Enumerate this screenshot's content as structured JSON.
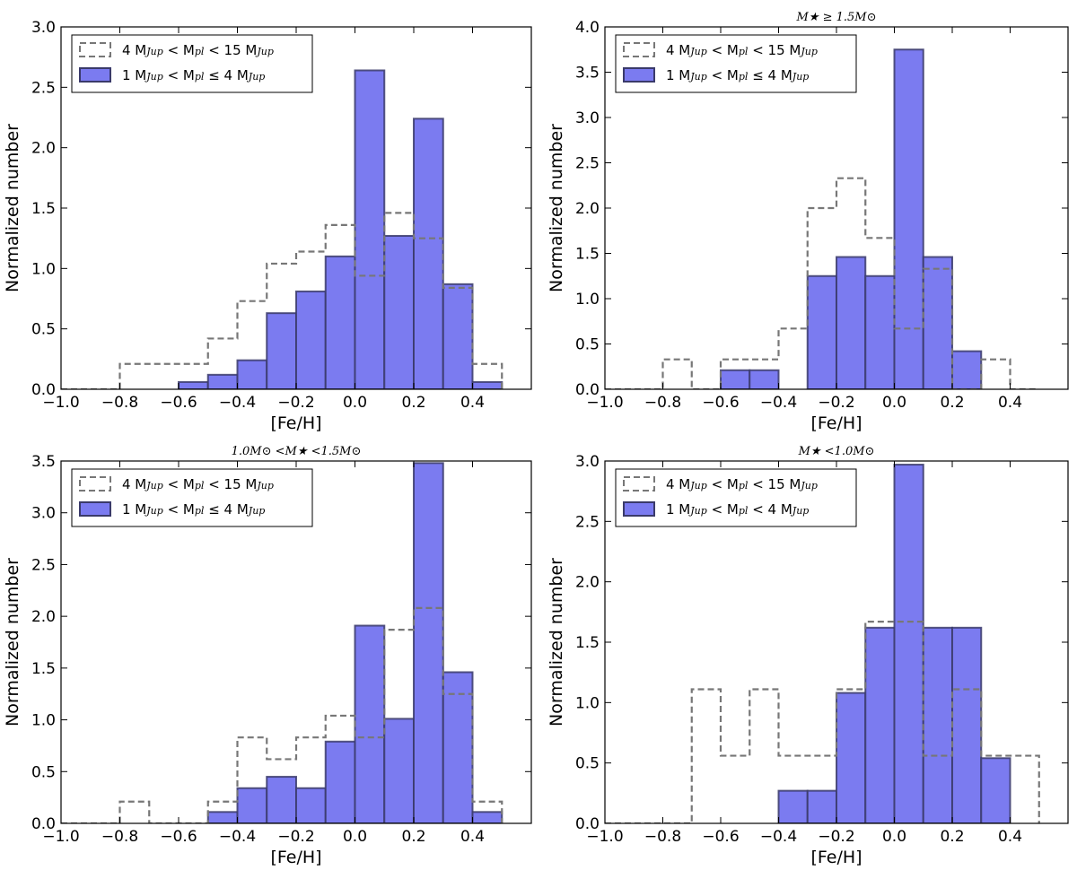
{
  "figure": {
    "colors": {
      "fill": "#7b7bf0",
      "edge": "#3a3a6a",
      "dashed": "#777777",
      "axis": "#000000"
    }
  },
  "chart_data": [
    {
      "type": "bar",
      "title": "",
      "xlabel": "[Fe/H]",
      "ylabel": "Normalized number",
      "xlim": [
        -1.0,
        0.6
      ],
      "ylim": [
        0,
        3.0
      ],
      "xticks": [
        -1.0,
        -0.8,
        -0.6,
        -0.4,
        -0.2,
        0.0,
        0.2,
        0.4
      ],
      "xtick_labels": [
        "−1.0",
        "−0.8",
        "−0.6",
        "−0.4",
        "−0.2",
        "0.0",
        "0.2",
        "0.4"
      ],
      "yticks": [
        0.0,
        0.5,
        1.0,
        1.5,
        2.0,
        2.5,
        3.0
      ],
      "ytick_labels": [
        "0.0",
        "0.5",
        "1.0",
        "1.5",
        "2.0",
        "2.5",
        "3.0"
      ],
      "bin_edges": [
        -1.0,
        -0.9,
        -0.8,
        -0.7,
        -0.6,
        -0.5,
        -0.4,
        -0.3,
        -0.2,
        -0.1,
        0.0,
        0.1,
        0.2,
        0.3,
        0.4,
        0.5
      ],
      "legend_position": "upper-left",
      "series": [
        {
          "name": "4 M_Jup < M_pl < 15 M_Jup",
          "style": "dashed-step",
          "values": [
            0.0,
            0.0,
            0.21,
            0.21,
            0.21,
            0.42,
            0.73,
            1.04,
            1.14,
            1.36,
            0.94,
            1.46,
            1.25,
            0.84,
            0.21
          ]
        },
        {
          "name": "1 M_Jup < M_pl ≤ 4 M_Jup",
          "style": "filled",
          "values": [
            0.0,
            0.0,
            0.0,
            0.0,
            0.06,
            0.12,
            0.24,
            0.63,
            0.81,
            1.1,
            2.64,
            1.27,
            2.24,
            0.87,
            0.06
          ]
        }
      ],
      "legend": {
        "dashed": {
          "prefix": "4 M",
          "sub1": "Jup",
          "mid1": " < M",
          "sub2": "pl",
          "mid2": " < 15 M",
          "sub3": "Jup"
        },
        "filled": {
          "prefix": "1 M",
          "sub1": "Jup",
          "mid1": " < M",
          "sub2": "pl",
          "mid2": " ≤ 4 M",
          "sub3": "Jup"
        }
      }
    },
    {
      "type": "bar",
      "title": "M★ ≥ 1.5M⊙",
      "xlabel": "[Fe/H]",
      "ylabel": "Normalized number",
      "xlim": [
        -1.0,
        0.6
      ],
      "ylim": [
        0,
        4.0
      ],
      "xticks": [
        -1.0,
        -0.8,
        -0.6,
        -0.4,
        -0.2,
        0.0,
        0.2,
        0.4
      ],
      "xtick_labels": [
        "−1.0",
        "−0.8",
        "−0.6",
        "−0.4",
        "−0.2",
        "0.0",
        "0.2",
        "0.4"
      ],
      "yticks": [
        0.0,
        0.5,
        1.0,
        1.5,
        2.0,
        2.5,
        3.0,
        3.5,
        4.0
      ],
      "ytick_labels": [
        "0.0",
        "0.5",
        "1.0",
        "1.5",
        "2.0",
        "2.5",
        "3.0",
        "3.5",
        "4.0"
      ],
      "bin_edges": [
        -1.0,
        -0.9,
        -0.8,
        -0.7,
        -0.6,
        -0.5,
        -0.4,
        -0.3,
        -0.2,
        -0.1,
        0.0,
        0.1,
        0.2,
        0.3,
        0.4,
        0.5
      ],
      "legend_position": "upper-left",
      "series": [
        {
          "name": "4 M_Jup < M_pl < 15 M_Jup",
          "style": "dashed-step",
          "values": [
            0.0,
            0.0,
            0.33,
            0.0,
            0.33,
            0.33,
            0.67,
            2.0,
            2.33,
            1.67,
            0.67,
            1.33,
            0.0,
            0.33,
            0.0
          ]
        },
        {
          "name": "1 M_Jup < M_pl ≤ 4 M_Jup",
          "style": "filled",
          "values": [
            0.0,
            0.0,
            0.0,
            0.0,
            0.21,
            0.21,
            0.0,
            1.25,
            1.46,
            1.25,
            3.75,
            1.46,
            0.42,
            0.0,
            0.0
          ]
        }
      ],
      "legend": {
        "dashed": {
          "prefix": "4 M",
          "sub1": "Jup",
          "mid1": " < M",
          "sub2": "pl",
          "mid2": " < 15 M",
          "sub3": "Jup"
        },
        "filled": {
          "prefix": "1 M",
          "sub1": "Jup",
          "mid1": " < M",
          "sub2": "pl",
          "mid2": " ≤ 4 M",
          "sub3": "Jup"
        }
      }
    },
    {
      "type": "bar",
      "title": "1.0M⊙ <M★ <1.5M⊙",
      "xlabel": "[Fe/H]",
      "ylabel": "Normalized number",
      "xlim": [
        -1.0,
        0.6
      ],
      "ylim": [
        0,
        3.5
      ],
      "xticks": [
        -1.0,
        -0.8,
        -0.6,
        -0.4,
        -0.2,
        0.0,
        0.2,
        0.4
      ],
      "xtick_labels": [
        "−1.0",
        "−0.8",
        "−0.6",
        "−0.4",
        "−0.2",
        "0.0",
        "0.2",
        "0.4"
      ],
      "yticks": [
        0.0,
        0.5,
        1.0,
        1.5,
        2.0,
        2.5,
        3.0,
        3.5
      ],
      "ytick_labels": [
        "0.0",
        "0.5",
        "1.0",
        "1.5",
        "2.0",
        "2.5",
        "3.0",
        "3.5"
      ],
      "bin_edges": [
        -1.0,
        -0.9,
        -0.8,
        -0.7,
        -0.6,
        -0.5,
        -0.4,
        -0.3,
        -0.2,
        -0.1,
        0.0,
        0.1,
        0.2,
        0.3,
        0.4,
        0.5
      ],
      "legend_position": "upper-left",
      "series": [
        {
          "name": "4 M_Jup < M_pl < 15 M_Jup",
          "style": "dashed-step",
          "values": [
            0.0,
            0.0,
            0.21,
            0.0,
            0.0,
            0.21,
            0.83,
            0.62,
            0.83,
            1.04,
            0.83,
            1.87,
            2.08,
            1.25,
            0.21
          ]
        },
        {
          "name": "1 M_Jup < M_pl ≤ 4 M_Jup",
          "style": "filled",
          "values": [
            0.0,
            0.0,
            0.0,
            0.0,
            0.0,
            0.11,
            0.34,
            0.45,
            0.34,
            0.79,
            1.91,
            1.01,
            3.48,
            1.46,
            0.11
          ]
        }
      ],
      "legend": {
        "dashed": {
          "prefix": "4 M",
          "sub1": "Jup",
          "mid1": " < M",
          "sub2": "pl",
          "mid2": " < 15 M",
          "sub3": "Jup"
        },
        "filled": {
          "prefix": "1 M",
          "sub1": "Jup",
          "mid1": " < M",
          "sub2": "pl",
          "mid2": " ≤ 4 M",
          "sub3": "Jup"
        }
      }
    },
    {
      "type": "bar",
      "title": "M★ <1.0M⊙",
      "xlabel": "[Fe/H]",
      "ylabel": "Normalized number",
      "xlim": [
        -1.0,
        0.6
      ],
      "ylim": [
        0,
        3.0
      ],
      "xticks": [
        -1.0,
        -0.8,
        -0.6,
        -0.4,
        -0.2,
        0.0,
        0.2,
        0.4
      ],
      "xtick_labels": [
        "−1.0",
        "−0.8",
        "−0.6",
        "−0.4",
        "−0.2",
        "0.0",
        "0.2",
        "0.4"
      ],
      "yticks": [
        0.0,
        0.5,
        1.0,
        1.5,
        2.0,
        2.5,
        3.0
      ],
      "ytick_labels": [
        "0.0",
        "0.5",
        "1.0",
        "1.5",
        "2.0",
        "2.5",
        "3.0"
      ],
      "bin_edges": [
        -1.0,
        -0.9,
        -0.8,
        -0.7,
        -0.6,
        -0.5,
        -0.4,
        -0.3,
        -0.2,
        -0.1,
        0.0,
        0.1,
        0.2,
        0.3,
        0.4,
        0.5
      ],
      "legend_position": "upper-left",
      "series": [
        {
          "name": "4 M_Jup < M_pl < 15 M_Jup",
          "style": "dashed-step",
          "values": [
            0.0,
            0.0,
            0.0,
            1.11,
            0.56,
            1.11,
            0.56,
            0.56,
            1.11,
            1.67,
            1.67,
            0.56,
            1.11,
            0.56,
            0.56
          ]
        },
        {
          "name": "1 M_Jup < M_pl < 4 M_Jup",
          "style": "filled",
          "values": [
            0.0,
            0.0,
            0.0,
            0.0,
            0.0,
            0.0,
            0.27,
            0.27,
            1.08,
            1.62,
            2.97,
            1.62,
            1.62,
            0.54,
            0.0
          ]
        }
      ],
      "legend": {
        "dashed": {
          "prefix": "4 M",
          "sub1": "Jup",
          "mid1": " < M",
          "sub2": "pl",
          "mid2": " < 15 M",
          "sub3": "Jup"
        },
        "filled": {
          "prefix": "1 M",
          "sub1": "Jup",
          "mid1": " < M",
          "sub2": "pl",
          "mid2": " < 4 M",
          "sub3": "Jup"
        }
      }
    }
  ]
}
